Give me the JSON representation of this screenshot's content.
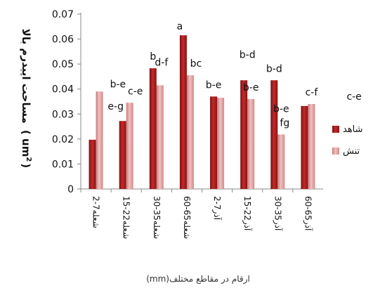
{
  "chart_data": {
    "type": "bar",
    "categories": [
      "2-7شعله",
      "15-22شعله",
      "30-35شعله",
      "60-65شعله",
      "2-7آذر",
      "15-22آذر",
      "30-35آذر",
      "60-65آذر"
    ],
    "series": [
      {
        "name": "شاهد",
        "values": [
          0.0197,
          0.0272,
          0.0483,
          0.0615,
          0.037,
          0.0435,
          0.0435,
          0.0332
        ],
        "color": "#a81c1c"
      },
      {
        "name": "تنش",
        "values": [
          0.039,
          0.0345,
          0.0415,
          0.0455,
          0.0365,
          0.036,
          0.0218,
          0.034
        ],
        "color": "#e6a0a0"
      }
    ],
    "annotations": [
      {
        "category": 0,
        "label": "b-e"
      },
      {
        "category": 1,
        "label": "e-g"
      },
      {
        "category": 1,
        "label": "c-e"
      },
      {
        "category": 2,
        "label": "b"
      },
      {
        "category": 2,
        "label": "d-f"
      },
      {
        "category": 3,
        "label": "a"
      },
      {
        "category": 3,
        "label": "bc"
      },
      {
        "category": 4,
        "label": "b-e"
      },
      {
        "category": 5,
        "label": "b-e"
      },
      {
        "category": 5,
        "label": "b-d"
      },
      {
        "category": 6,
        "label": "b-e"
      },
      {
        "category": 6,
        "label": "b-d"
      },
      {
        "category": 6,
        "label": "fg"
      },
      {
        "category": 7,
        "label": "c-f"
      },
      {
        "category": 7,
        "label": "c-e"
      }
    ],
    "yticks": [
      "0",
      "0.01",
      "0.02",
      "0.03",
      "0.04",
      "0.05",
      "0.06",
      "0.07"
    ],
    "ylim": [
      0,
      0.07
    ],
    "ylabel_main": "مساحت اپیدرم بالا",
    "ylabel_unit": "( um",
    "ylabel_sup": "2",
    "ylabel_close": ")",
    "xlabel": "ارقام در مقاطع مختلف(mm)",
    "grid": false,
    "legend_position": "right"
  }
}
